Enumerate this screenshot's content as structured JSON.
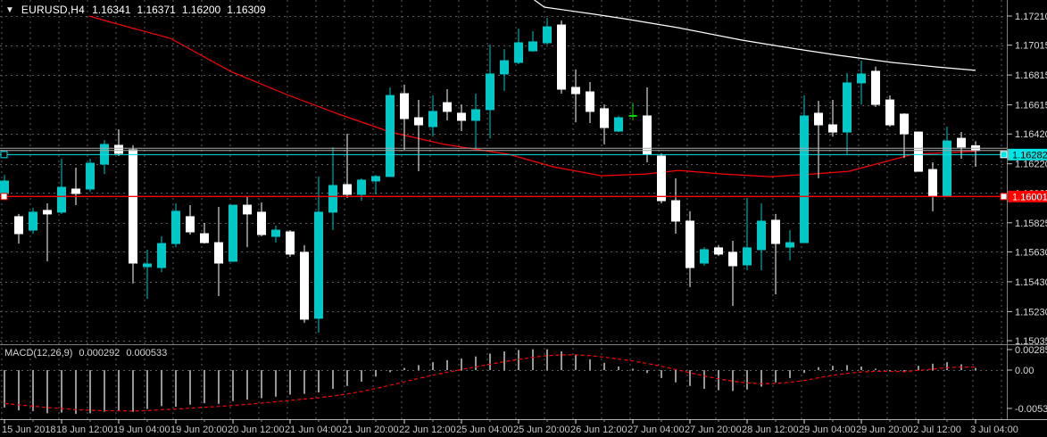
{
  "header": {
    "dropdown_icon": "▼",
    "symbol": "EURUSD,H4",
    "open": "1.16341",
    "high": "1.16371",
    "low": "1.16200",
    "close": "1.16309"
  },
  "indicator": {
    "name": "MACD(12,26,9)",
    "main_value": "0.000292",
    "signal_value": "0.000533"
  },
  "price_axis": {
    "ticks": [
      "1.17210",
      "1.17015",
      "1.16815",
      "1.16615",
      "1.16420",
      "1.16220",
      "1.16025",
      "1.15825",
      "1.15630",
      "1.15430",
      "1.15230",
      "1.15035"
    ],
    "current_price_badge": {
      "value": "1.16282"
    },
    "alert_price_badge": {
      "value": "1.16001"
    }
  },
  "macd_axis": {
    "ticks": [
      {
        "label": "0.002857",
        "value": 0.002857
      },
      {
        "label": "0.00",
        "value": 0.0
      },
      {
        "label": "-0.005325",
        "value": -0.005325
      }
    ]
  },
  "time_axis": {
    "labels": [
      {
        "label": "15 Jun 2018",
        "bar": 0
      },
      {
        "label": "18 Jun 12:00",
        "bar": 4
      },
      {
        "label": "19 Jun 04:00",
        "bar": 8
      },
      {
        "label": "19 Jun 20:00",
        "bar": 12
      },
      {
        "label": "20 Jun 12:00",
        "bar": 16
      },
      {
        "label": "21 Jun 04:00",
        "bar": 20
      },
      {
        "label": "21 Jun 20:00",
        "bar": 24
      },
      {
        "label": "22 Jun 12:00",
        "bar": 28
      },
      {
        "label": "25 Jun 04:00",
        "bar": 32
      },
      {
        "label": "25 Jun 20:00",
        "bar": 36
      },
      {
        "label": "26 Jun 12:00",
        "bar": 40
      },
      {
        "label": "27 Jun 04:00",
        "bar": 44
      },
      {
        "label": "27 Jun 20:00",
        "bar": 48
      },
      {
        "label": "28 Jun 12:00",
        "bar": 52
      },
      {
        "label": "29 Jun 04:00",
        "bar": 56
      },
      {
        "label": "29 Jun 20:00",
        "bar": 60
      },
      {
        "label": "2 Jul 12:00",
        "bar": 64
      },
      {
        "label": "3 Jul 04:00",
        "bar": 68
      }
    ]
  },
  "colors": {
    "background": "#000000",
    "grid": "#566068",
    "bull": "#00C8C8",
    "bear": "#FFFFFF",
    "doji": "#00DD00",
    "ma_fast": "#FF0000",
    "ma_slow": "#FFFFFF",
    "price_line": "#00E5E5",
    "alert_line": "#FF0000",
    "gray_level_line": "#A8A8A8",
    "macd_hist": "#C8C8C8",
    "macd_signal": "#FF0000",
    "axis_text": "#DADADA",
    "badge_price_bg": "#00E5E5",
    "badge_price_text": "#000000",
    "badge_alert_bg": "#FF0000",
    "badge_alert_text": "#FFFFFF",
    "separator": "#808080"
  },
  "chart_data": {
    "type": "candlestick+macd",
    "symbol": "EURUSD",
    "timeframe": "H4",
    "price_axis_range": [
      1.15035,
      1.1721
    ],
    "horizontal_lines": [
      {
        "name": "current-price",
        "value": 1.16282,
        "color": "#00E5E5",
        "badge": "1.16282"
      },
      {
        "name": "alert-level",
        "value": 1.16001,
        "color": "#FF0000",
        "badge": "1.16001"
      },
      {
        "name": "gray-level-1",
        "value": 1.16324,
        "color": "#A8A8A8"
      },
      {
        "name": "gray-level-2",
        "value": 1.16309,
        "color": "#A8A8A8"
      }
    ],
    "candles": [
      {
        "t": "15 Jun 20:00",
        "o": 1.16021,
        "h": 1.16146,
        "l": 1.16003,
        "c": 1.16105,
        "dir": "up"
      },
      {
        "t": "18 Jun 00:00",
        "o": 1.15866,
        "h": 1.15884,
        "l": 1.15686,
        "c": 1.15752,
        "dir": "down"
      },
      {
        "t": "18 Jun 04:00",
        "o": 1.15776,
        "h": 1.15925,
        "l": 1.15752,
        "c": 1.15896,
        "dir": "up"
      },
      {
        "t": "18 Jun 08:00",
        "o": 1.15908,
        "h": 1.15955,
        "l": 1.15567,
        "c": 1.15884,
        "dir": "down"
      },
      {
        "t": "18 Jun 12:00",
        "o": 1.15896,
        "h": 1.16254,
        "l": 1.15884,
        "c": 1.16063,
        "dir": "up"
      },
      {
        "t": "18 Jun 16:00",
        "o": 1.16051,
        "h": 1.16194,
        "l": 1.15943,
        "c": 1.16021,
        "dir": "down"
      },
      {
        "t": "18 Jun 20:00",
        "o": 1.16051,
        "h": 1.16254,
        "l": 1.16033,
        "c": 1.16224,
        "dir": "up"
      },
      {
        "t": "19 Jun 00:00",
        "o": 1.16218,
        "h": 1.16379,
        "l": 1.16152,
        "c": 1.1635,
        "dir": "up"
      },
      {
        "t": "19 Jun 04:00",
        "o": 1.16344,
        "h": 1.16451,
        "l": 1.16272,
        "c": 1.1629,
        "dir": "down"
      },
      {
        "t": "19 Jun 08:00",
        "o": 1.16314,
        "h": 1.16344,
        "l": 1.15418,
        "c": 1.15555,
        "dir": "down"
      },
      {
        "t": "19 Jun 12:00",
        "o": 1.15531,
        "h": 1.15645,
        "l": 1.15316,
        "c": 1.15549,
        "dir": "up"
      },
      {
        "t": "19 Jun 16:00",
        "o": 1.15525,
        "h": 1.15734,
        "l": 1.15495,
        "c": 1.15686,
        "dir": "up"
      },
      {
        "t": "19 Jun 20:00",
        "o": 1.15686,
        "h": 1.15955,
        "l": 1.15662,
        "c": 1.15902,
        "dir": "up"
      },
      {
        "t": "20 Jun 00:00",
        "o": 1.15866,
        "h": 1.15943,
        "l": 1.15746,
        "c": 1.15764,
        "dir": "down"
      },
      {
        "t": "20 Jun 04:00",
        "o": 1.15752,
        "h": 1.15824,
        "l": 1.15686,
        "c": 1.15692,
        "dir": "down"
      },
      {
        "t": "20 Jun 08:00",
        "o": 1.15692,
        "h": 1.15931,
        "l": 1.15334,
        "c": 1.15555,
        "dir": "down"
      },
      {
        "t": "20 Jun 12:00",
        "o": 1.15567,
        "h": 1.15943,
        "l": 1.15567,
        "c": 1.15943,
        "dir": "up"
      },
      {
        "t": "20 Jun 16:00",
        "o": 1.15943,
        "h": 1.16003,
        "l": 1.15662,
        "c": 1.15884,
        "dir": "down"
      },
      {
        "t": "20 Jun 20:00",
        "o": 1.15896,
        "h": 1.15961,
        "l": 1.15734,
        "c": 1.15746,
        "dir": "down"
      },
      {
        "t": "21 Jun 00:00",
        "o": 1.15734,
        "h": 1.15806,
        "l": 1.15692,
        "c": 1.15776,
        "dir": "up"
      },
      {
        "t": "21 Jun 04:00",
        "o": 1.15764,
        "h": 1.15776,
        "l": 1.15597,
        "c": 1.15615,
        "dir": "down"
      },
      {
        "t": "21 Jun 08:00",
        "o": 1.15627,
        "h": 1.15675,
        "l": 1.15155,
        "c": 1.15179,
        "dir": "down"
      },
      {
        "t": "21 Jun 12:00",
        "o": 1.15185,
        "h": 1.16135,
        "l": 1.15089,
        "c": 1.15896,
        "dir": "up"
      },
      {
        "t": "21 Jun 16:00",
        "o": 1.15896,
        "h": 1.16332,
        "l": 1.15776,
        "c": 1.16075,
        "dir": "up"
      },
      {
        "t": "21 Jun 20:00",
        "o": 1.16081,
        "h": 1.16421,
        "l": 1.15991,
        "c": 1.16015,
        "dir": "down"
      },
      {
        "t": "22 Jun 00:00",
        "o": 1.16015,
        "h": 1.16123,
        "l": 1.15973,
        "c": 1.16111,
        "dir": "up"
      },
      {
        "t": "22 Jun 04:00",
        "o": 1.16105,
        "h": 1.16146,
        "l": 1.16015,
        "c": 1.16135,
        "dir": "up"
      },
      {
        "t": "22 Jun 08:00",
        "o": 1.16135,
        "h": 1.16732,
        "l": 1.16135,
        "c": 1.16678,
        "dir": "up"
      },
      {
        "t": "22 Jun 12:00",
        "o": 1.1669,
        "h": 1.1675,
        "l": 1.16314,
        "c": 1.16523,
        "dir": "down"
      },
      {
        "t": "22 Jun 16:00",
        "o": 1.16529,
        "h": 1.16648,
        "l": 1.1617,
        "c": 1.16481,
        "dir": "down"
      },
      {
        "t": "22 Jun 20:00",
        "o": 1.16469,
        "h": 1.16678,
        "l": 1.16403,
        "c": 1.16571,
        "dir": "up"
      },
      {
        "t": "25 Jun 00:00",
        "o": 1.1663,
        "h": 1.1672,
        "l": 1.16511,
        "c": 1.16571,
        "dir": "down"
      },
      {
        "t": "25 Jun 04:00",
        "o": 1.16559,
        "h": 1.16618,
        "l": 1.16439,
        "c": 1.16511,
        "dir": "down"
      },
      {
        "t": "25 Jun 08:00",
        "o": 1.16511,
        "h": 1.1669,
        "l": 1.1632,
        "c": 1.16583,
        "dir": "up"
      },
      {
        "t": "25 Jun 12:00",
        "o": 1.16583,
        "h": 1.17019,
        "l": 1.16391,
        "c": 1.16822,
        "dir": "up"
      },
      {
        "t": "25 Jun 16:00",
        "o": 1.16822,
        "h": 1.16989,
        "l": 1.16708,
        "c": 1.16911,
        "dir": "up"
      },
      {
        "t": "25 Jun 20:00",
        "o": 1.16899,
        "h": 1.17126,
        "l": 1.16887,
        "c": 1.17031,
        "dir": "up"
      },
      {
        "t": "26 Jun 00:00",
        "o": 1.16977,
        "h": 1.17108,
        "l": 1.16971,
        "c": 1.17037,
        "dir": "up"
      },
      {
        "t": "26 Jun 04:00",
        "o": 1.17031,
        "h": 1.17198,
        "l": 1.17019,
        "c": 1.17138,
        "dir": "up"
      },
      {
        "t": "26 Jun 08:00",
        "o": 1.1715,
        "h": 1.1718,
        "l": 1.1669,
        "c": 1.1672,
        "dir": "down"
      },
      {
        "t": "26 Jun 12:00",
        "o": 1.16732,
        "h": 1.16852,
        "l": 1.16499,
        "c": 1.1669,
        "dir": "down"
      },
      {
        "t": "26 Jun 16:00",
        "o": 1.16702,
        "h": 1.16768,
        "l": 1.16493,
        "c": 1.16571,
        "dir": "down"
      },
      {
        "t": "26 Jun 20:00",
        "o": 1.16589,
        "h": 1.16618,
        "l": 1.1635,
        "c": 1.16463,
        "dir": "down"
      },
      {
        "t": "27 Jun 00:00",
        "o": 1.16439,
        "h": 1.16541,
        "l": 1.16433,
        "c": 1.16529,
        "dir": "up"
      },
      {
        "t": "27 Jun 04:00",
        "o": 1.16541,
        "h": 1.1663,
        "l": 1.16511,
        "c": 1.16541,
        "dir": "doji"
      },
      {
        "t": "27 Jun 08:00",
        "o": 1.16541,
        "h": 1.16732,
        "l": 1.1623,
        "c": 1.16284,
        "dir": "down"
      },
      {
        "t": "27 Jun 12:00",
        "o": 1.16272,
        "h": 1.1629,
        "l": 1.15955,
        "c": 1.15973,
        "dir": "down"
      },
      {
        "t": "27 Jun 16:00",
        "o": 1.15973,
        "h": 1.16123,
        "l": 1.15752,
        "c": 1.15836,
        "dir": "down"
      },
      {
        "t": "27 Jun 20:00",
        "o": 1.15836,
        "h": 1.15902,
        "l": 1.15394,
        "c": 1.15525,
        "dir": "down"
      },
      {
        "t": "28 Jun 00:00",
        "o": 1.15555,
        "h": 1.15662,
        "l": 1.15537,
        "c": 1.15645,
        "dir": "up"
      },
      {
        "t": "28 Jun 04:00",
        "o": 1.15657,
        "h": 1.15675,
        "l": 1.15603,
        "c": 1.15615,
        "dir": "down"
      },
      {
        "t": "28 Jun 08:00",
        "o": 1.15627,
        "h": 1.15704,
        "l": 1.15268,
        "c": 1.15537,
        "dir": "down"
      },
      {
        "t": "28 Jun 12:00",
        "o": 1.15543,
        "h": 1.15991,
        "l": 1.15507,
        "c": 1.15657,
        "dir": "up"
      },
      {
        "t": "28 Jun 16:00",
        "o": 1.15645,
        "h": 1.15955,
        "l": 1.15507,
        "c": 1.15836,
        "dir": "up"
      },
      {
        "t": "28 Jun 20:00",
        "o": 1.15842,
        "h": 1.15884,
        "l": 1.15346,
        "c": 1.15686,
        "dir": "down"
      },
      {
        "t": "29 Jun 00:00",
        "o": 1.15662,
        "h": 1.15776,
        "l": 1.15573,
        "c": 1.15692,
        "dir": "up"
      },
      {
        "t": "29 Jun 04:00",
        "o": 1.15692,
        "h": 1.16678,
        "l": 1.15692,
        "c": 1.16541,
        "dir": "up"
      },
      {
        "t": "29 Jun 08:00",
        "o": 1.16559,
        "h": 1.16642,
        "l": 1.16123,
        "c": 1.16481,
        "dir": "down"
      },
      {
        "t": "29 Jun 12:00",
        "o": 1.16481,
        "h": 1.16648,
        "l": 1.16403,
        "c": 1.16433,
        "dir": "down"
      },
      {
        "t": "29 Jun 16:00",
        "o": 1.16433,
        "h": 1.16828,
        "l": 1.16284,
        "c": 1.16762,
        "dir": "up"
      },
      {
        "t": "29 Jun 20:00",
        "o": 1.16762,
        "h": 1.16911,
        "l": 1.16618,
        "c": 1.16822,
        "dir": "up"
      },
      {
        "t": "2 Jul 00:00",
        "o": 1.1684,
        "h": 1.1687,
        "l": 1.16601,
        "c": 1.16618,
        "dir": "down"
      },
      {
        "t": "2 Jul 04:00",
        "o": 1.16648,
        "h": 1.16678,
        "l": 1.16469,
        "c": 1.16481,
        "dir": "down"
      },
      {
        "t": "2 Jul 08:00",
        "o": 1.16553,
        "h": 1.16559,
        "l": 1.1626,
        "c": 1.16421,
        "dir": "down"
      },
      {
        "t": "2 Jul 12:00",
        "o": 1.16433,
        "h": 1.16433,
        "l": 1.1617,
        "c": 1.1617,
        "dir": "down"
      },
      {
        "t": "2 Jul 16:00",
        "o": 1.16182,
        "h": 1.1623,
        "l": 1.15902,
        "c": 1.16003,
        "dir": "down"
      },
      {
        "t": "2 Jul 20:00",
        "o": 1.16003,
        "h": 1.16469,
        "l": 1.16003,
        "c": 1.16373,
        "dir": "up"
      },
      {
        "t": "3 Jul 00:00",
        "o": 1.16391,
        "h": 1.16433,
        "l": 1.16254,
        "c": 1.16332,
        "dir": "down"
      },
      {
        "t": "3 Jul 04:00",
        "o": 1.16341,
        "h": 1.16371,
        "l": 1.162,
        "c": 1.16309,
        "dir": "down"
      }
    ],
    "ma_fast_red": [
      [
        5.9,
        1.1721
      ],
      [
        6.8,
        1.17186
      ],
      [
        8.6,
        1.17138
      ],
      [
        11.6,
        1.17061
      ],
      [
        15.8,
        1.1684
      ],
      [
        19.9,
        1.16678
      ],
      [
        23.4,
        1.16553
      ],
      [
        27.0,
        1.16433
      ],
      [
        30.8,
        1.1635
      ],
      [
        35.3,
        1.16284
      ],
      [
        38.4,
        1.162
      ],
      [
        41.8,
        1.1614
      ],
      [
        44.9,
        1.16152
      ],
      [
        47.2,
        1.16176
      ],
      [
        50.3,
        1.16152
      ],
      [
        53.6,
        1.16134
      ],
      [
        56.6,
        1.16152
      ],
      [
        59.1,
        1.1617
      ],
      [
        63.6,
        1.16284
      ],
      [
        67.4,
        1.16302
      ],
      [
        68.0,
        1.16305
      ]
    ],
    "ma_slow_white": [
      [
        37.1,
        1.17318
      ],
      [
        37.8,
        1.1727
      ],
      [
        40.9,
        1.17228
      ],
      [
        43.4,
        1.17192
      ],
      [
        47.2,
        1.17132
      ],
      [
        51.6,
        1.17049
      ],
      [
        54.7,
        1.17001
      ],
      [
        58.4,
        1.16947
      ],
      [
        62.2,
        1.16899
      ],
      [
        65.3,
        1.16869
      ],
      [
        68.0,
        1.16846
      ]
    ],
    "macd": {
      "params": "12,26,9",
      "axis_range": [
        -0.005325,
        0.002857
      ],
      "signal_smoothing": 0.2,
      "signal_seed": -0.0045,
      "histogram": [
        -0.0052,
        -0.0056,
        -0.0057,
        -0.006,
        -0.0059,
        -0.0061,
        -0.006,
        -0.0058,
        -0.0057,
        -0.0058,
        -0.0054,
        -0.005,
        -0.0051,
        -0.0048,
        -0.0046,
        -0.0047,
        -0.0043,
        -0.0041,
        -0.0039,
        -0.0037,
        -0.0034,
        -0.0033,
        -0.0031,
        -0.0026,
        -0.0022,
        -0.0016,
        -0.0009,
        -0.0003,
        0.0003,
        0.0007,
        0.0011,
        0.0014,
        0.0016,
        0.0019,
        0.0023,
        0.0026,
        0.0028,
        0.0029,
        0.0029,
        0.0026,
        0.0021,
        0.0015,
        0.001,
        0.0005,
        0.0002,
        -0.0004,
        -0.0011,
        -0.0017,
        -0.0022,
        -0.0026,
        -0.0028,
        -0.0029,
        -0.0027,
        -0.0023,
        -0.0017,
        -0.0011,
        -0.0004,
        0.0004,
        0.0006,
        0.0007,
        0.0005,
        0.0002,
        -0.0002,
        -0.0003,
        0.0006,
        0.0009,
        0.0011,
        0.0008,
        0.000292
      ]
    }
  }
}
